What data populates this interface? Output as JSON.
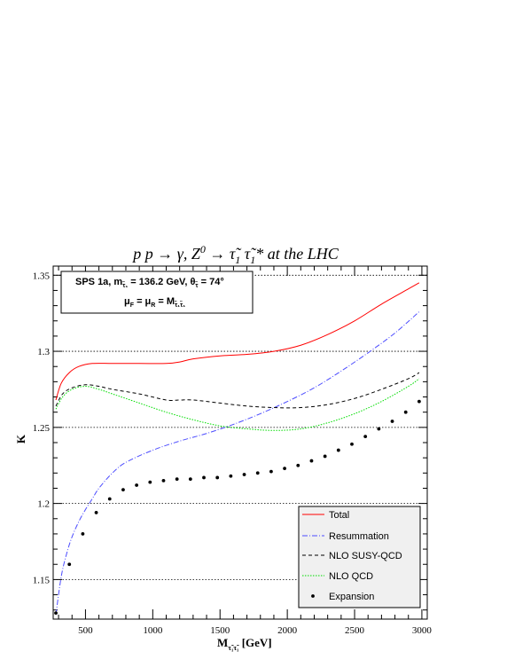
{
  "chart_data": {
    "type": "line",
    "title": "p p → γ, Z",
    "title_sup": "0",
    "title_mid": " → τ̃",
    "title_sub1": "1",
    "title_mid2": " τ̃",
    "title_sub2": "1",
    "title_tail": "* at the LHC",
    "xlabel_main": "M",
    "xlabel_sub": "τ̃₁τ̃₁",
    "xlabel_unit": " [GeV]",
    "ylabel": "K",
    "xlim": [
      260,
      3040
    ],
    "ylim": [
      1.124,
      1.356
    ],
    "x_ticks": [
      500,
      1000,
      1500,
      2000,
      2500,
      3000
    ],
    "x_tick_labels": [
      "500",
      "1000",
      "1500",
      "2000",
      "2500",
      "3000"
    ],
    "y_ticks": [
      1.15,
      1.2,
      1.25,
      1.3,
      1.35
    ],
    "y_tick_labels": [
      "1.15",
      "1.2",
      "1.25",
      "1.3",
      "1.35"
    ],
    "grid": "horizontal dotted",
    "legend_placement": "bottom-right",
    "info_box": {
      "line1_a": "SPS 1a, m",
      "line1_sub": "τ̃₁",
      "line1_b": " = 136.2 GeV, θ",
      "line1_sub2": "τ̃",
      "line1_c": " =  74°",
      "line2_a": "μ",
      "line2_sub_a": "F",
      "line2_b": " = μ",
      "line2_sub_b": "R",
      "line2_c": " = M",
      "line2_sub_c": "τ̃₁τ̃₁"
    },
    "series": [
      {
        "name": "Total",
        "color": "#ff0000",
        "style": "solid",
        "x": [
          280,
          320,
          380,
          450,
          550,
          700,
          900,
          1100,
          1200,
          1300,
          1500,
          1700,
          1900,
          2100,
          2300,
          2500,
          2700,
          2900,
          2980
        ],
        "y": [
          1.268,
          1.279,
          1.286,
          1.29,
          1.292,
          1.292,
          1.292,
          1.292,
          1.293,
          1.295,
          1.297,
          1.298,
          1.3,
          1.304,
          1.311,
          1.32,
          1.331,
          1.341,
          1.345
        ]
      },
      {
        "name": "Resummation",
        "color": "#4c4cff",
        "style": "dashdot",
        "x": [
          280,
          320,
          360,
          400,
          450,
          500,
          550,
          600,
          700,
          800,
          1000,
          1200,
          1400,
          1600,
          1800,
          2000,
          2200,
          2400,
          2600,
          2800,
          2980
        ],
        "y": [
          1.127,
          1.152,
          1.167,
          1.178,
          1.188,
          1.196,
          1.203,
          1.21,
          1.22,
          1.227,
          1.235,
          1.241,
          1.246,
          1.252,
          1.259,
          1.267,
          1.276,
          1.287,
          1.299,
          1.312,
          1.326
        ]
      },
      {
        "name": "NLO SUSY-QCD",
        "color": "#000000",
        "style": "dashed",
        "x": [
          280,
          330,
          400,
          500,
          600,
          700,
          900,
          1100,
          1200,
          1300,
          1500,
          1700,
          1900,
          2100,
          2300,
          2500,
          2700,
          2900,
          2980
        ],
        "y": [
          1.264,
          1.272,
          1.276,
          1.278,
          1.277,
          1.275,
          1.272,
          1.268,
          1.268,
          1.268,
          1.266,
          1.264,
          1.263,
          1.263,
          1.265,
          1.269,
          1.275,
          1.282,
          1.286
        ]
      },
      {
        "name": "NLO QCD",
        "color": "#00dd00",
        "style": "dotted",
        "x": [
          280,
          330,
          400,
          500,
          600,
          700,
          900,
          1100,
          1300,
          1500,
          1700,
          1900,
          2100,
          2300,
          2500,
          2700,
          2900,
          2980
        ],
        "y": [
          1.262,
          1.27,
          1.275,
          1.277,
          1.275,
          1.272,
          1.266,
          1.26,
          1.255,
          1.251,
          1.249,
          1.248,
          1.249,
          1.253,
          1.259,
          1.267,
          1.277,
          1.282
        ]
      },
      {
        "name": "Expansion",
        "color": "#000000",
        "style": "markers",
        "x": [
          280,
          380,
          480,
          580,
          680,
          780,
          880,
          980,
          1080,
          1180,
          1280,
          1380,
          1480,
          1580,
          1680,
          1780,
          1880,
          1980,
          2080,
          2180,
          2280,
          2380,
          2480,
          2580,
          2680,
          2780,
          2880,
          2980
        ],
        "y": [
          1.128,
          1.16,
          1.18,
          1.194,
          1.203,
          1.209,
          1.212,
          1.214,
          1.215,
          1.216,
          1.216,
          1.217,
          1.217,
          1.218,
          1.219,
          1.22,
          1.221,
          1.223,
          1.225,
          1.228,
          1.231,
          1.235,
          1.239,
          1.244,
          1.249,
          1.254,
          1.26,
          1.267
        ]
      }
    ]
  }
}
